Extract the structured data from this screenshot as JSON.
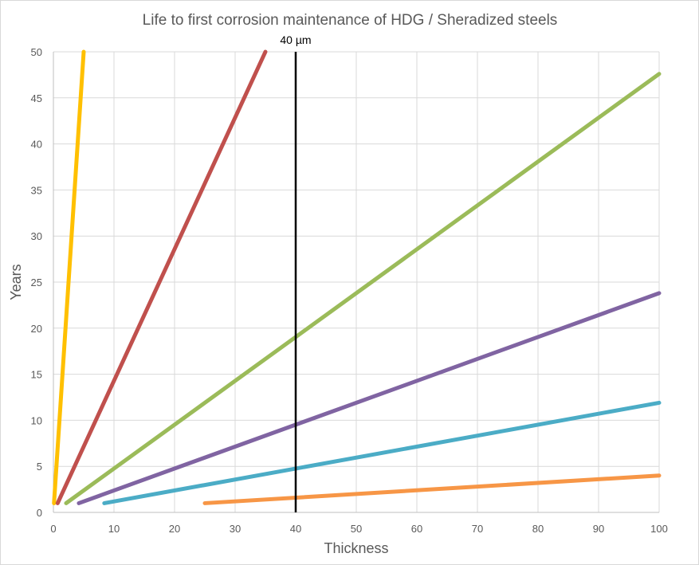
{
  "chart_data": {
    "type": "line",
    "title": "Life to first corrosion maintenance of HDG / Sheradized steels",
    "xlabel": "Thickness",
    "ylabel": "Years",
    "xlim": [
      0,
      100
    ],
    "ylim": [
      0,
      50
    ],
    "x_ticks": [
      "0",
      "10",
      "20",
      "30",
      "40",
      "50",
      "60",
      "70",
      "80",
      "90",
      "100"
    ],
    "y_ticks": [
      "0",
      "5",
      "10",
      "15",
      "20",
      "25",
      "30",
      "35",
      "40",
      "45",
      "50"
    ],
    "grid": true,
    "legend": "none",
    "annotation": {
      "label": "40 µm",
      "x": 40,
      "color": "#000000"
    },
    "series": [
      {
        "color": "#FFC000",
        "points": [
          [
            0.1,
            1
          ],
          [
            5,
            50
          ]
        ]
      },
      {
        "color": "#C0504D",
        "points": [
          [
            0.7,
            1
          ],
          [
            35,
            50
          ]
        ]
      },
      {
        "color": "#9BBB59",
        "points": [
          [
            2.1,
            1
          ],
          [
            100,
            47.6
          ]
        ]
      },
      {
        "color": "#8064A2",
        "points": [
          [
            4.2,
            1
          ],
          [
            100,
            23.8
          ]
        ]
      },
      {
        "color": "#4BACC6",
        "points": [
          [
            8.4,
            1
          ],
          [
            100,
            11.9
          ]
        ]
      },
      {
        "color": "#F79646",
        "points": [
          [
            25,
            1
          ],
          [
            100,
            4
          ]
        ]
      }
    ]
  }
}
